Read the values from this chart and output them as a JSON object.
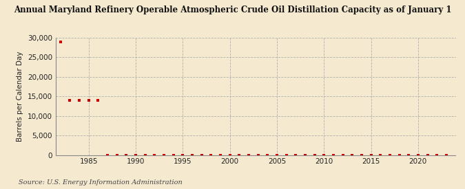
{
  "title": "Annual Maryland Refinery Operable Atmospheric Crude Oil Distillation Capacity as of January 1",
  "ylabel": "Barrels per Calendar Day",
  "source": "Source: U.S. Energy Information Administration",
  "background_color": "#f5e9d0",
  "plot_background_color": "#f5e9d0",
  "marker_color": "#cc0000",
  "xlim": [
    1981.5,
    2024
  ],
  "ylim": [
    0,
    30000
  ],
  "yticks": [
    0,
    5000,
    10000,
    15000,
    20000,
    25000,
    30000
  ],
  "xticks": [
    1985,
    1990,
    1995,
    2000,
    2005,
    2010,
    2015,
    2020
  ],
  "data_years": [
    1982,
    1983,
    1984,
    1985,
    1986,
    1987,
    1988,
    1989,
    1990,
    1991,
    1992,
    1993,
    1994,
    1995,
    1996,
    1997,
    1998,
    1999,
    2000,
    2001,
    2002,
    2003,
    2004,
    2005,
    2006,
    2007,
    2008,
    2009,
    2010,
    2011,
    2012,
    2013,
    2014,
    2015,
    2016,
    2017,
    2018,
    2019,
    2020,
    2021,
    2022,
    2023
  ],
  "data_values": [
    29000,
    14000,
    14000,
    14000,
    14000,
    0,
    0,
    0,
    0,
    0,
    0,
    0,
    0,
    0,
    0,
    0,
    0,
    0,
    0,
    0,
    0,
    0,
    0,
    0,
    0,
    0,
    0,
    0,
    0,
    0,
    0,
    0,
    0,
    0,
    0,
    0,
    0,
    0,
    0,
    0,
    0,
    0
  ]
}
